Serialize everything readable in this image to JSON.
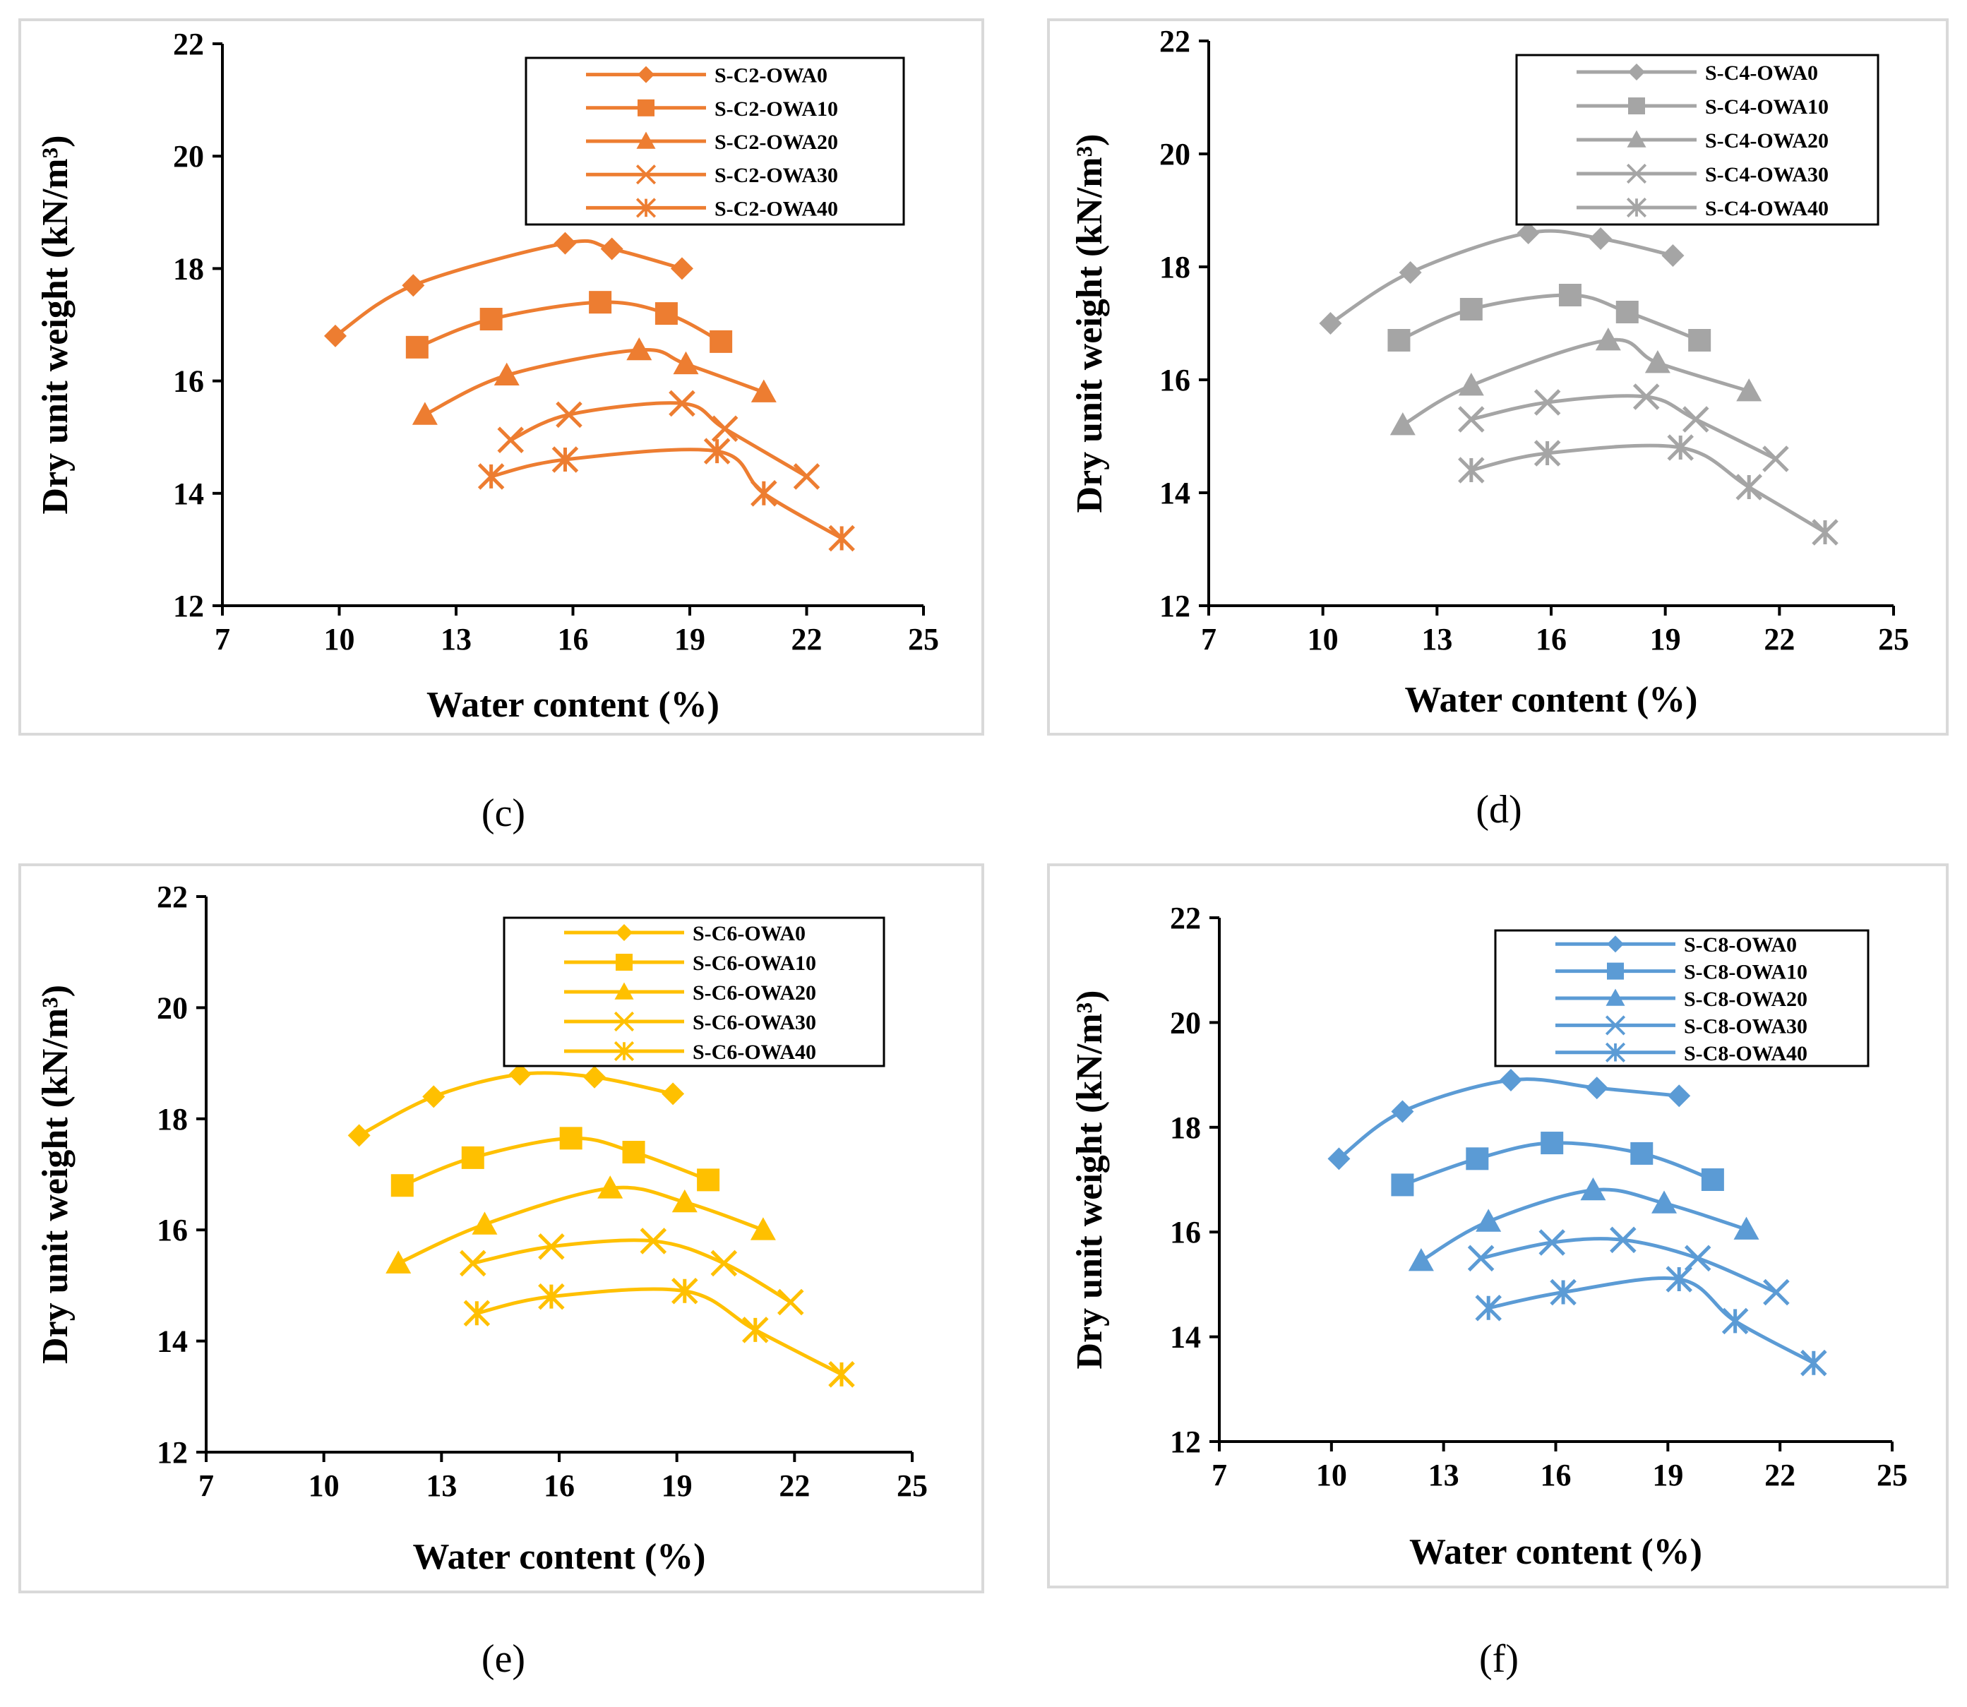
{
  "chart_data": [
    {
      "type": "line",
      "panel_label": "(c)",
      "color": "#ED7D31",
      "xlabel": "Water content (%)",
      "ylabel": "Dry unit weight (kN/m³)",
      "xlim": [
        7,
        25
      ],
      "ylim": [
        12,
        22
      ],
      "xticks": [
        "7",
        "10",
        "13",
        "16",
        "19",
        "22",
        "25"
      ],
      "yticks": [
        "12",
        "14",
        "16",
        "18",
        "20",
        "22"
      ],
      "legend_position": "top-right",
      "series": [
        {
          "name": "S-C2-OWA0",
          "marker": "diamond",
          "x": [
            9.9,
            11.9,
            15.8,
            17.0,
            18.8
          ],
          "y": [
            16.8,
            17.7,
            18.45,
            18.35,
            18.0
          ]
        },
        {
          "name": "S-C2-OWA10",
          "marker": "square",
          "x": [
            12.0,
            13.9,
            16.7,
            18.4,
            19.8
          ],
          "y": [
            16.6,
            17.1,
            17.4,
            17.2,
            16.7
          ]
        },
        {
          "name": "S-C2-OWA20",
          "marker": "triangle",
          "x": [
            12.2,
            14.3,
            17.7,
            18.9,
            20.9
          ],
          "y": [
            15.4,
            16.1,
            16.55,
            16.3,
            15.8
          ]
        },
        {
          "name": "S-C2-OWA30",
          "marker": "x",
          "x": [
            14.4,
            15.9,
            18.8,
            19.9,
            22.0
          ],
          "y": [
            14.95,
            15.4,
            15.6,
            15.15,
            14.3
          ]
        },
        {
          "name": "S-C2-OWA40",
          "marker": "star",
          "x": [
            13.9,
            15.8,
            19.7,
            20.9,
            22.9
          ],
          "y": [
            14.3,
            14.6,
            14.75,
            14.0,
            13.2
          ]
        }
      ]
    },
    {
      "type": "line",
      "panel_label": "(d)",
      "color": "#A5A5A5",
      "xlabel": "Water content (%)",
      "ylabel": "Dry unit weight (kN/m³)",
      "xlim": [
        7,
        25
      ],
      "ylim": [
        12,
        22
      ],
      "xticks": [
        "7",
        "10",
        "13",
        "16",
        "19",
        "22",
        "25"
      ],
      "yticks": [
        "12",
        "14",
        "16",
        "18",
        "20",
        "22"
      ],
      "legend_position": "top-right",
      "series": [
        {
          "name": "S-C4-OWA0",
          "marker": "diamond",
          "x": [
            10.2,
            12.3,
            15.4,
            17.3,
            19.2
          ],
          "y": [
            17.0,
            17.9,
            18.6,
            18.5,
            18.2
          ]
        },
        {
          "name": "S-C4-OWA10",
          "marker": "square",
          "x": [
            12.0,
            13.9,
            16.5,
            18.0,
            19.9
          ],
          "y": [
            16.7,
            17.25,
            17.5,
            17.2,
            16.7
          ]
        },
        {
          "name": "S-C4-OWA20",
          "marker": "triangle",
          "x": [
            12.1,
            13.9,
            17.5,
            18.8,
            21.2
          ],
          "y": [
            15.2,
            15.9,
            16.7,
            16.3,
            15.8
          ]
        },
        {
          "name": "S-C4-OWA30",
          "marker": "x",
          "x": [
            13.9,
            15.9,
            18.5,
            19.8,
            21.9
          ],
          "y": [
            15.3,
            15.6,
            15.7,
            15.3,
            14.6
          ]
        },
        {
          "name": "S-C4-OWA40",
          "marker": "star",
          "x": [
            13.9,
            15.9,
            19.4,
            21.2,
            23.2
          ],
          "y": [
            14.4,
            14.7,
            14.8,
            14.1,
            13.3
          ]
        }
      ]
    },
    {
      "type": "line",
      "panel_label": "(e)",
      "color": "#FFC000",
      "xlabel": "Water content (%)",
      "ylabel": "Dry unit weight (kN/m³)",
      "xlim": [
        7,
        25
      ],
      "ylim": [
        12,
        22
      ],
      "xticks": [
        "7",
        "10",
        "13",
        "16",
        "19",
        "22",
        "25"
      ],
      "yticks": [
        "12",
        "14",
        "16",
        "18",
        "20",
        "22"
      ],
      "legend_position": "top-right",
      "series": [
        {
          "name": "S-C6-OWA0",
          "marker": "diamond",
          "x": [
            10.9,
            12.8,
            15.0,
            16.9,
            18.9
          ],
          "y": [
            17.7,
            18.4,
            18.8,
            18.75,
            18.45
          ]
        },
        {
          "name": "S-C6-OWA10",
          "marker": "square",
          "x": [
            12.0,
            13.8,
            16.3,
            17.9,
            19.8
          ],
          "y": [
            16.8,
            17.3,
            17.65,
            17.4,
            16.9
          ]
        },
        {
          "name": "S-C6-OWA20",
          "marker": "triangle",
          "x": [
            11.9,
            14.1,
            17.3,
            19.2,
            21.2
          ],
          "y": [
            15.4,
            16.1,
            16.75,
            16.5,
            16.0
          ]
        },
        {
          "name": "S-C6-OWA30",
          "marker": "x",
          "x": [
            13.8,
            15.8,
            18.4,
            20.2,
            21.9
          ],
          "y": [
            15.4,
            15.7,
            15.8,
            15.4,
            14.7
          ]
        },
        {
          "name": "S-C6-OWA40",
          "marker": "star",
          "x": [
            13.9,
            15.8,
            19.2,
            21.0,
            23.2
          ],
          "y": [
            14.5,
            14.8,
            14.9,
            14.2,
            13.4
          ]
        }
      ]
    },
    {
      "type": "line",
      "panel_label": "(f)",
      "color": "#5B9BD5",
      "xlabel": "Water content (%)",
      "ylabel": "Dry unit weight (kN/m³)",
      "xlim": [
        7,
        25
      ],
      "ylim": [
        12,
        22
      ],
      "xticks": [
        "7",
        "10",
        "13",
        "16",
        "19",
        "22",
        "25"
      ],
      "yticks": [
        "12",
        "14",
        "16",
        "18",
        "20",
        "22"
      ],
      "legend_position": "top-right",
      "series": [
        {
          "name": "S-C8-OWA0",
          "marker": "diamond",
          "x": [
            10.2,
            11.9,
            14.8,
            17.1,
            19.3
          ],
          "y": [
            17.4,
            18.3,
            18.9,
            18.75,
            18.6
          ]
        },
        {
          "name": "S-C8-OWA10",
          "marker": "square",
          "x": [
            11.9,
            13.9,
            15.9,
            18.3,
            20.2
          ],
          "y": [
            16.9,
            17.4,
            17.7,
            17.5,
            17.0
          ]
        },
        {
          "name": "S-C8-OWA20",
          "marker": "triangle",
          "x": [
            12.4,
            14.2,
            17.0,
            18.9,
            21.1
          ],
          "y": [
            15.45,
            16.2,
            16.8,
            16.55,
            16.05
          ]
        },
        {
          "name": "S-C8-OWA30",
          "marker": "x",
          "x": [
            14.0,
            15.9,
            17.8,
            19.8,
            21.9
          ],
          "y": [
            15.5,
            15.8,
            15.85,
            15.5,
            14.85
          ]
        },
        {
          "name": "S-C8-OWA40",
          "marker": "star",
          "x": [
            14.2,
            16.2,
            19.3,
            20.8,
            22.9
          ],
          "y": [
            14.55,
            14.85,
            15.1,
            14.3,
            13.5
          ]
        }
      ]
    }
  ]
}
